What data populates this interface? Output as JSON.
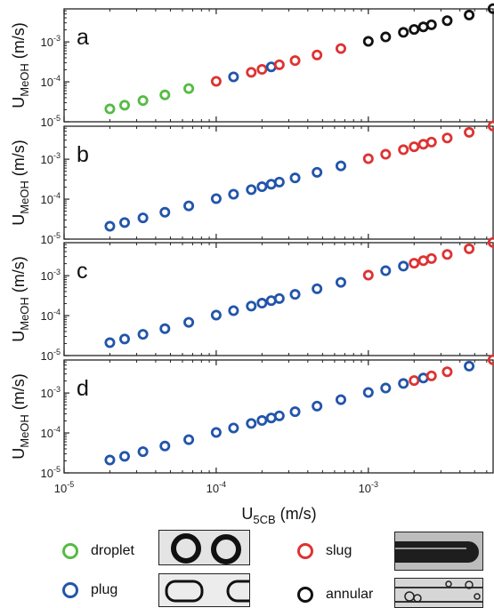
{
  "chart_data": {
    "type": "scatter",
    "x_scale": "log",
    "y_scale": "log",
    "xlim": [
      1e-05,
      0.0067
    ],
    "ylim": [
      1e-05,
      0.0067
    ],
    "xlabel_main": "U",
    "xlabel_sub": "5CB",
    "xlabel_unit": " (m/s)",
    "ylabel_main": "U",
    "ylabel_sub": "MeOH",
    "ylabel_unit": " (m/s)",
    "x_ticks": [
      {
        "value": 1e-05,
        "base": "10",
        "exp": "-5"
      },
      {
        "value": 0.0001,
        "base": "10",
        "exp": "-4"
      },
      {
        "value": 0.001,
        "base": "10",
        "exp": "-3"
      }
    ],
    "y_ticks": [
      {
        "value": 1e-05,
        "base": "10",
        "exp": "-5"
      },
      {
        "value": 0.0001,
        "base": "10",
        "exp": "-4"
      },
      {
        "value": 0.001,
        "base": "10",
        "exp": "-3"
      }
    ],
    "regimes": {
      "droplet": {
        "label": "droplet",
        "color": "#55bb44"
      },
      "plug": {
        "label": "plug",
        "color": "#2255aa"
      },
      "slug": {
        "label": "slug",
        "color": "#dd3333"
      },
      "annular": {
        "label": "annular",
        "color": "#111111"
      }
    },
    "panels": [
      {
        "label": "a",
        "points": [
          {
            "x": 2e-05,
            "y": 2.1e-05,
            "r": "droplet"
          },
          {
            "x": 2.5e-05,
            "y": 2.6e-05,
            "r": "droplet"
          },
          {
            "x": 3.3e-05,
            "y": 3.4e-05,
            "r": "droplet"
          },
          {
            "x": 4.6e-05,
            "y": 4.7e-05,
            "r": "droplet"
          },
          {
            "x": 6.6e-05,
            "y": 6.8e-05,
            "r": "droplet"
          },
          {
            "x": 0.0001,
            "y": 0.000103,
            "r": "slug"
          },
          {
            "x": 0.00013,
            "y": 0.000133,
            "r": "plug"
          },
          {
            "x": 0.00017,
            "y": 0.000173,
            "r": "slug"
          },
          {
            "x": 0.0002,
            "y": 0.000205,
            "r": "slug"
          },
          {
            "x": 0.00023,
            "y": 0.000237,
            "r": "plug"
          },
          {
            "x": 0.00026,
            "y": 0.000268,
            "r": "slug"
          },
          {
            "x": 0.00033,
            "y": 0.00034,
            "r": "slug"
          },
          {
            "x": 0.00046,
            "y": 0.00047,
            "r": "slug"
          },
          {
            "x": 0.00066,
            "y": 0.00068,
            "r": "slug"
          },
          {
            "x": 0.001,
            "y": 0.00103,
            "r": "annular"
          },
          {
            "x": 0.0013,
            "y": 0.00133,
            "r": "annular"
          },
          {
            "x": 0.0017,
            "y": 0.00173,
            "r": "annular"
          },
          {
            "x": 0.002,
            "y": 0.00205,
            "r": "annular"
          },
          {
            "x": 0.0023,
            "y": 0.00237,
            "r": "annular"
          },
          {
            "x": 0.0026,
            "y": 0.00268,
            "r": "annular"
          },
          {
            "x": 0.0033,
            "y": 0.0034,
            "r": "annular"
          },
          {
            "x": 0.0046,
            "y": 0.0047,
            "r": "annular"
          },
          {
            "x": 0.0066,
            "y": 0.0068,
            "r": "annular"
          }
        ]
      },
      {
        "label": "b",
        "points": [
          {
            "x": 2e-05,
            "y": 2.1e-05,
            "r": "plug"
          },
          {
            "x": 2.5e-05,
            "y": 2.6e-05,
            "r": "plug"
          },
          {
            "x": 3.3e-05,
            "y": 3.4e-05,
            "r": "plug"
          },
          {
            "x": 4.6e-05,
            "y": 4.7e-05,
            "r": "plug"
          },
          {
            "x": 6.6e-05,
            "y": 6.8e-05,
            "r": "plug"
          },
          {
            "x": 0.0001,
            "y": 0.000103,
            "r": "plug"
          },
          {
            "x": 0.00013,
            "y": 0.000133,
            "r": "plug"
          },
          {
            "x": 0.00017,
            "y": 0.000173,
            "r": "plug"
          },
          {
            "x": 0.0002,
            "y": 0.000205,
            "r": "plug"
          },
          {
            "x": 0.00023,
            "y": 0.000237,
            "r": "plug"
          },
          {
            "x": 0.00026,
            "y": 0.000268,
            "r": "plug"
          },
          {
            "x": 0.00033,
            "y": 0.00034,
            "r": "plug"
          },
          {
            "x": 0.00046,
            "y": 0.00047,
            "r": "plug"
          },
          {
            "x": 0.00066,
            "y": 0.00068,
            "r": "plug"
          },
          {
            "x": 0.001,
            "y": 0.00103,
            "r": "slug"
          },
          {
            "x": 0.0013,
            "y": 0.00133,
            "r": "slug"
          },
          {
            "x": 0.0017,
            "y": 0.00173,
            "r": "slug"
          },
          {
            "x": 0.002,
            "y": 0.00205,
            "r": "slug"
          },
          {
            "x": 0.0023,
            "y": 0.00237,
            "r": "slug"
          },
          {
            "x": 0.0026,
            "y": 0.00268,
            "r": "slug"
          },
          {
            "x": 0.0033,
            "y": 0.0034,
            "r": "slug"
          },
          {
            "x": 0.0046,
            "y": 0.0047,
            "r": "slug"
          },
          {
            "x": 0.0066,
            "y": 0.0068,
            "r": "slug"
          }
        ]
      },
      {
        "label": "c",
        "points": [
          {
            "x": 2e-05,
            "y": 2.1e-05,
            "r": "plug"
          },
          {
            "x": 2.5e-05,
            "y": 2.6e-05,
            "r": "plug"
          },
          {
            "x": 3.3e-05,
            "y": 3.4e-05,
            "r": "plug"
          },
          {
            "x": 4.6e-05,
            "y": 4.7e-05,
            "r": "plug"
          },
          {
            "x": 6.6e-05,
            "y": 6.8e-05,
            "r": "plug"
          },
          {
            "x": 0.0001,
            "y": 0.000103,
            "r": "plug"
          },
          {
            "x": 0.00013,
            "y": 0.000133,
            "r": "plug"
          },
          {
            "x": 0.00017,
            "y": 0.000173,
            "r": "plug"
          },
          {
            "x": 0.0002,
            "y": 0.000205,
            "r": "plug"
          },
          {
            "x": 0.00023,
            "y": 0.000237,
            "r": "plug"
          },
          {
            "x": 0.00026,
            "y": 0.000268,
            "r": "plug"
          },
          {
            "x": 0.00033,
            "y": 0.00034,
            "r": "plug"
          },
          {
            "x": 0.00046,
            "y": 0.00047,
            "r": "plug"
          },
          {
            "x": 0.00066,
            "y": 0.00068,
            "r": "plug"
          },
          {
            "x": 0.001,
            "y": 0.00103,
            "r": "slug"
          },
          {
            "x": 0.0013,
            "y": 0.00133,
            "r": "plug"
          },
          {
            "x": 0.0017,
            "y": 0.00173,
            "r": "plug"
          },
          {
            "x": 0.002,
            "y": 0.00205,
            "r": "slug"
          },
          {
            "x": 0.0023,
            "y": 0.00237,
            "r": "slug"
          },
          {
            "x": 0.0026,
            "y": 0.00268,
            "r": "slug"
          },
          {
            "x": 0.0033,
            "y": 0.0034,
            "r": "slug"
          },
          {
            "x": 0.0046,
            "y": 0.0047,
            "r": "slug"
          },
          {
            "x": 0.0066,
            "y": 0.0068,
            "r": "slug"
          }
        ]
      },
      {
        "label": "d",
        "points": [
          {
            "x": 2e-05,
            "y": 2.1e-05,
            "r": "plug"
          },
          {
            "x": 2.5e-05,
            "y": 2.6e-05,
            "r": "plug"
          },
          {
            "x": 3.3e-05,
            "y": 3.4e-05,
            "r": "plug"
          },
          {
            "x": 4.6e-05,
            "y": 4.7e-05,
            "r": "plug"
          },
          {
            "x": 6.6e-05,
            "y": 6.8e-05,
            "r": "plug"
          },
          {
            "x": 0.0001,
            "y": 0.000103,
            "r": "plug"
          },
          {
            "x": 0.00013,
            "y": 0.000133,
            "r": "plug"
          },
          {
            "x": 0.00017,
            "y": 0.000173,
            "r": "plug"
          },
          {
            "x": 0.0002,
            "y": 0.000205,
            "r": "plug"
          },
          {
            "x": 0.00023,
            "y": 0.000237,
            "r": "plug"
          },
          {
            "x": 0.00026,
            "y": 0.000268,
            "r": "plug"
          },
          {
            "x": 0.00033,
            "y": 0.00034,
            "r": "plug"
          },
          {
            "x": 0.00046,
            "y": 0.00047,
            "r": "plug"
          },
          {
            "x": 0.00066,
            "y": 0.00068,
            "r": "plug"
          },
          {
            "x": 0.001,
            "y": 0.00103,
            "r": "plug"
          },
          {
            "x": 0.0013,
            "y": 0.00133,
            "r": "plug"
          },
          {
            "x": 0.0017,
            "y": 0.00173,
            "r": "plug"
          },
          {
            "x": 0.002,
            "y": 0.00205,
            "r": "slug"
          },
          {
            "x": 0.0023,
            "y": 0.00237,
            "r": "plug"
          },
          {
            "x": 0.0026,
            "y": 0.00268,
            "r": "slug"
          },
          {
            "x": 0.0033,
            "y": 0.0034,
            "r": "slug"
          },
          {
            "x": 0.0046,
            "y": 0.0047,
            "r": "plug"
          },
          {
            "x": 0.0066,
            "y": 0.0068,
            "r": "slug"
          }
        ]
      }
    ]
  },
  "legend": {
    "items": [
      {
        "key": "droplet",
        "label": "droplet",
        "color": "#55bb44",
        "thumb": "droplet"
      },
      {
        "key": "slug",
        "label": "slug",
        "color": "#dd3333",
        "thumb": "slug"
      },
      {
        "key": "plug",
        "label": "plug",
        "color": "#2255aa",
        "thumb": "plug"
      },
      {
        "key": "annular",
        "label": "annular",
        "color": "#111111",
        "thumb": "annular"
      }
    ]
  }
}
